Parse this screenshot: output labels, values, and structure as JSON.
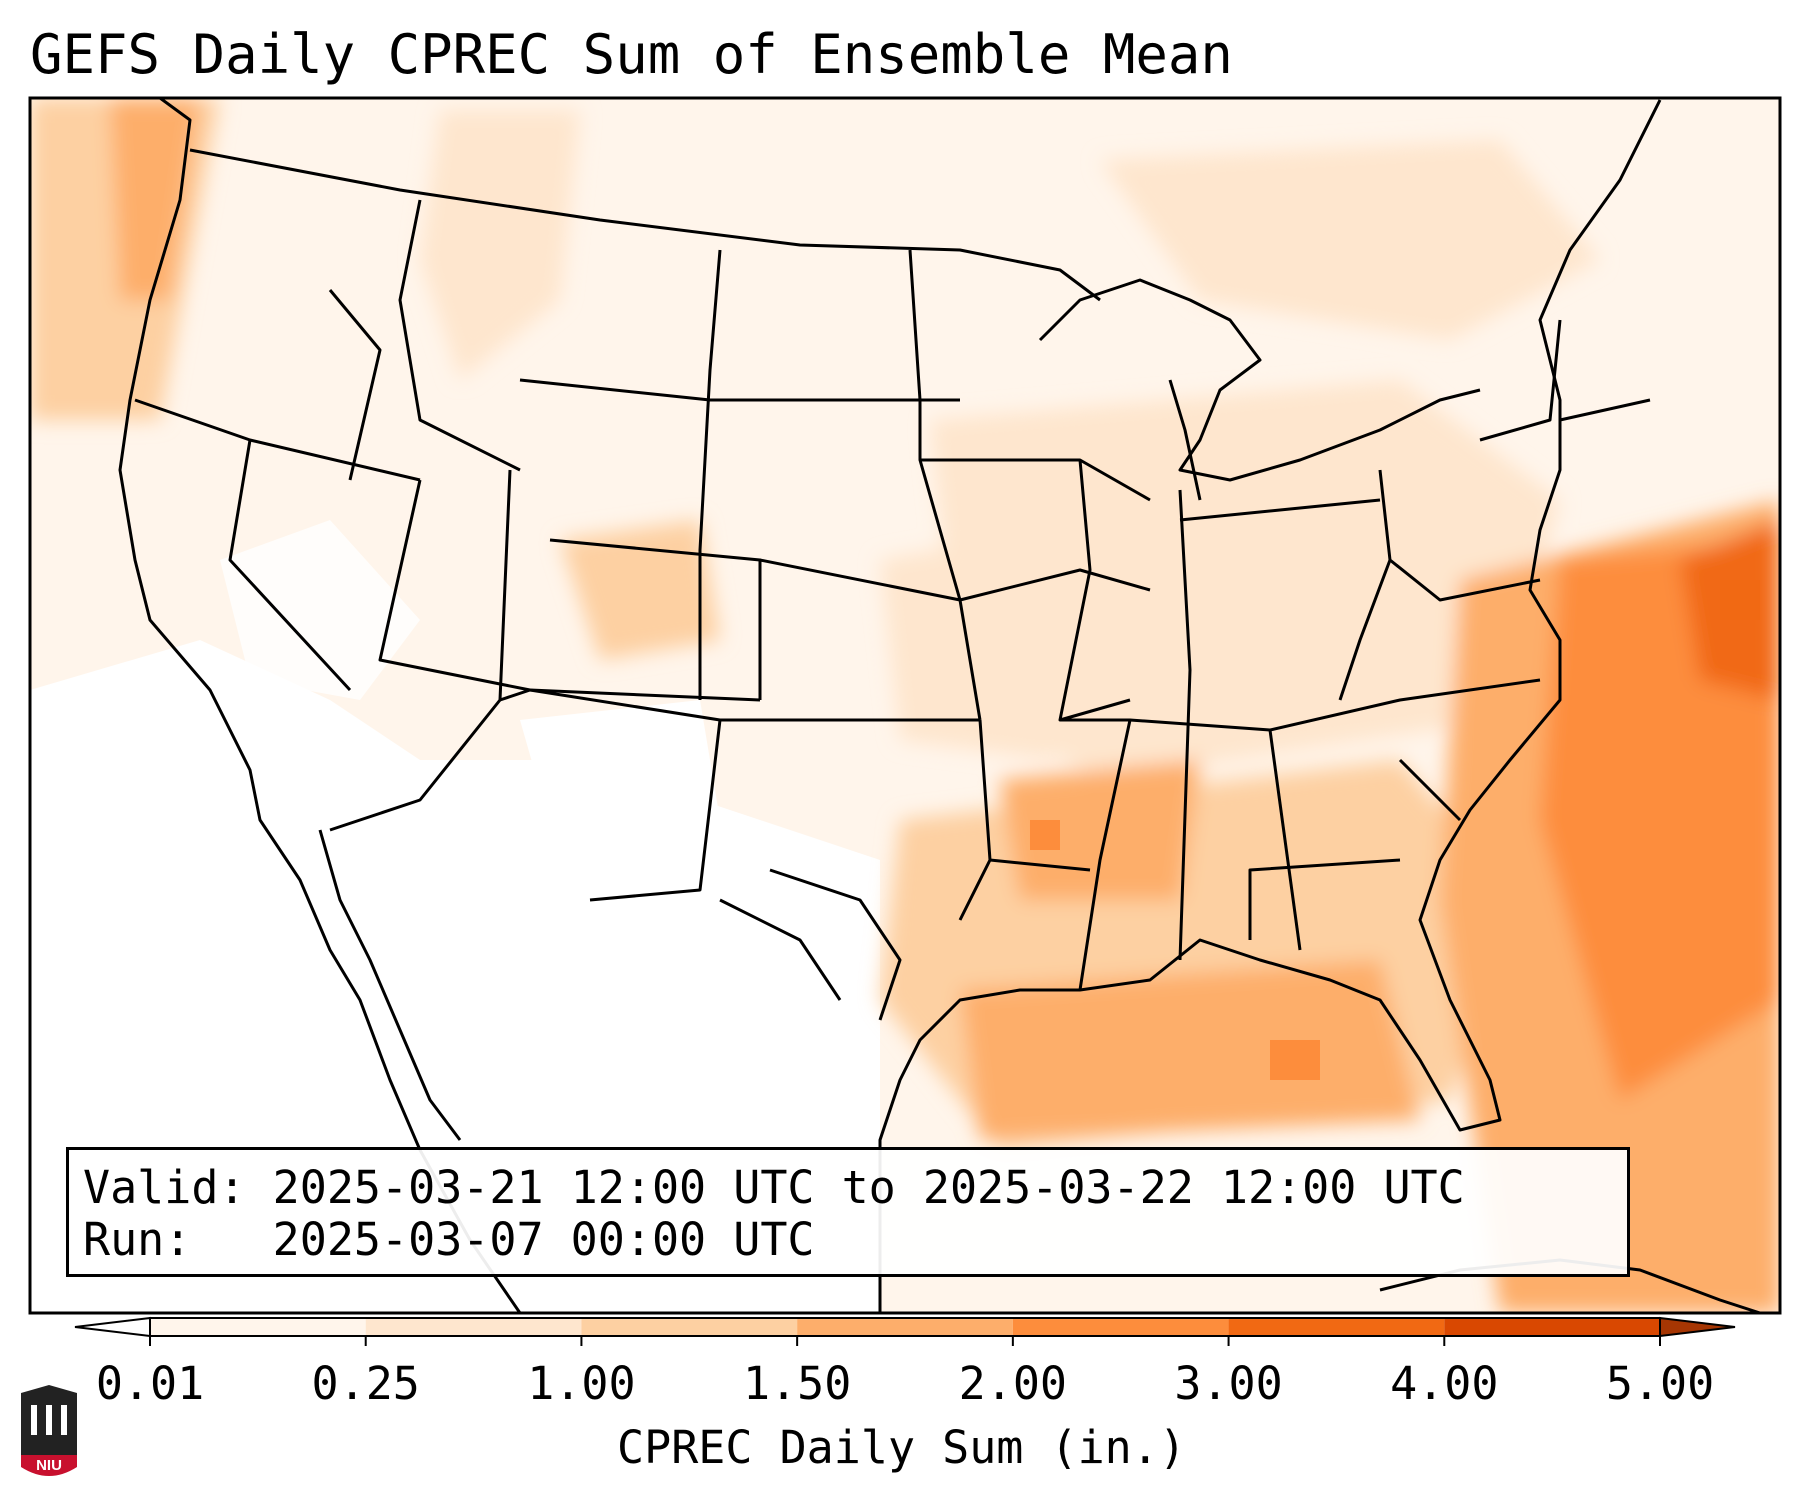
{
  "title": "GEFS Daily CPREC Sum of Ensemble Mean",
  "valid_label": "Valid:",
  "valid_value": "2025-03-21 12:00 UTC to 2025-03-22 12:00 UTC",
  "run_label": "Run:",
  "run_value": "2025-03-07 00:00 UTC",
  "colorbar": {
    "label": "CPREC Daily Sum (in.)",
    "ticks": [
      "0.01",
      "0.25",
      "1.00",
      "1.50",
      "2.00",
      "3.00",
      "4.00",
      "5.00"
    ],
    "colors": [
      "#ffffff",
      "#fff5eb",
      "#fee6ce",
      "#fdd0a2",
      "#fdae6b",
      "#fd8d3c",
      "#f16913",
      "#d94801",
      "#a63603"
    ]
  },
  "logo_text": "NIU",
  "colors": {
    "coast": "#000000",
    "frame": "#000000"
  }
}
